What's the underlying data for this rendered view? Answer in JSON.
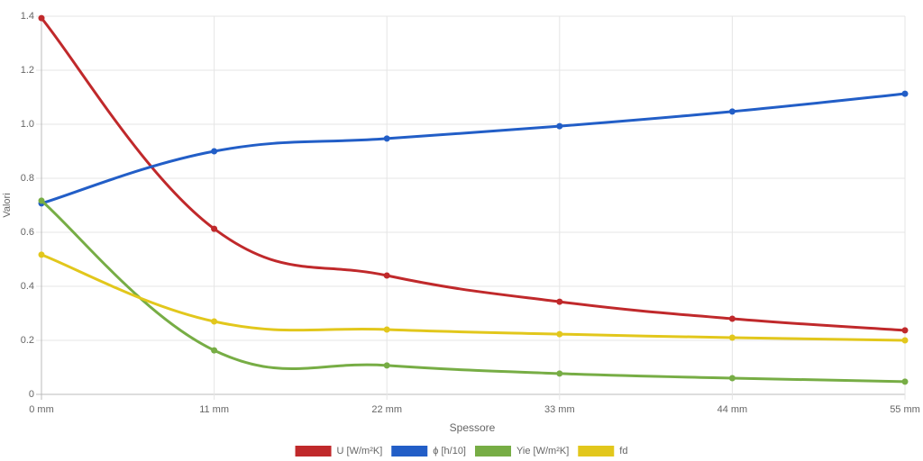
{
  "chart_data": {
    "type": "line",
    "x_label": "Spessore",
    "y_label": "Valori",
    "categories": [
      "0 mm",
      "11 mm",
      "22 mm",
      "33 mm",
      "44 mm",
      "55 mm"
    ],
    "series": [
      {
        "name": "U [W/m²K]",
        "color": "#c0292b",
        "values": [
          1.393,
          0.613,
          0.44,
          0.343,
          0.28,
          0.237
        ]
      },
      {
        "name": "ϕ [h/10]",
        "color": "#225ec7",
        "values": [
          0.707,
          0.9,
          0.947,
          0.993,
          1.047,
          1.113
        ]
      },
      {
        "name": "Yie [W/m²K]",
        "color": "#77ad45",
        "values": [
          0.717,
          0.163,
          0.107,
          0.077,
          0.06,
          0.047
        ]
      },
      {
        "name": "fd",
        "color": "#e2c71c",
        "values": [
          0.517,
          0.27,
          0.24,
          0.223,
          0.21,
          0.2
        ]
      }
    ],
    "ylim": [
      0,
      1.4
    ],
    "yticks": [
      0,
      0.2,
      0.4,
      0.6,
      0.8,
      {
        "value": 1,
        "label": "1.0"
      },
      1.2,
      1.4
    ],
    "grid": true
  }
}
